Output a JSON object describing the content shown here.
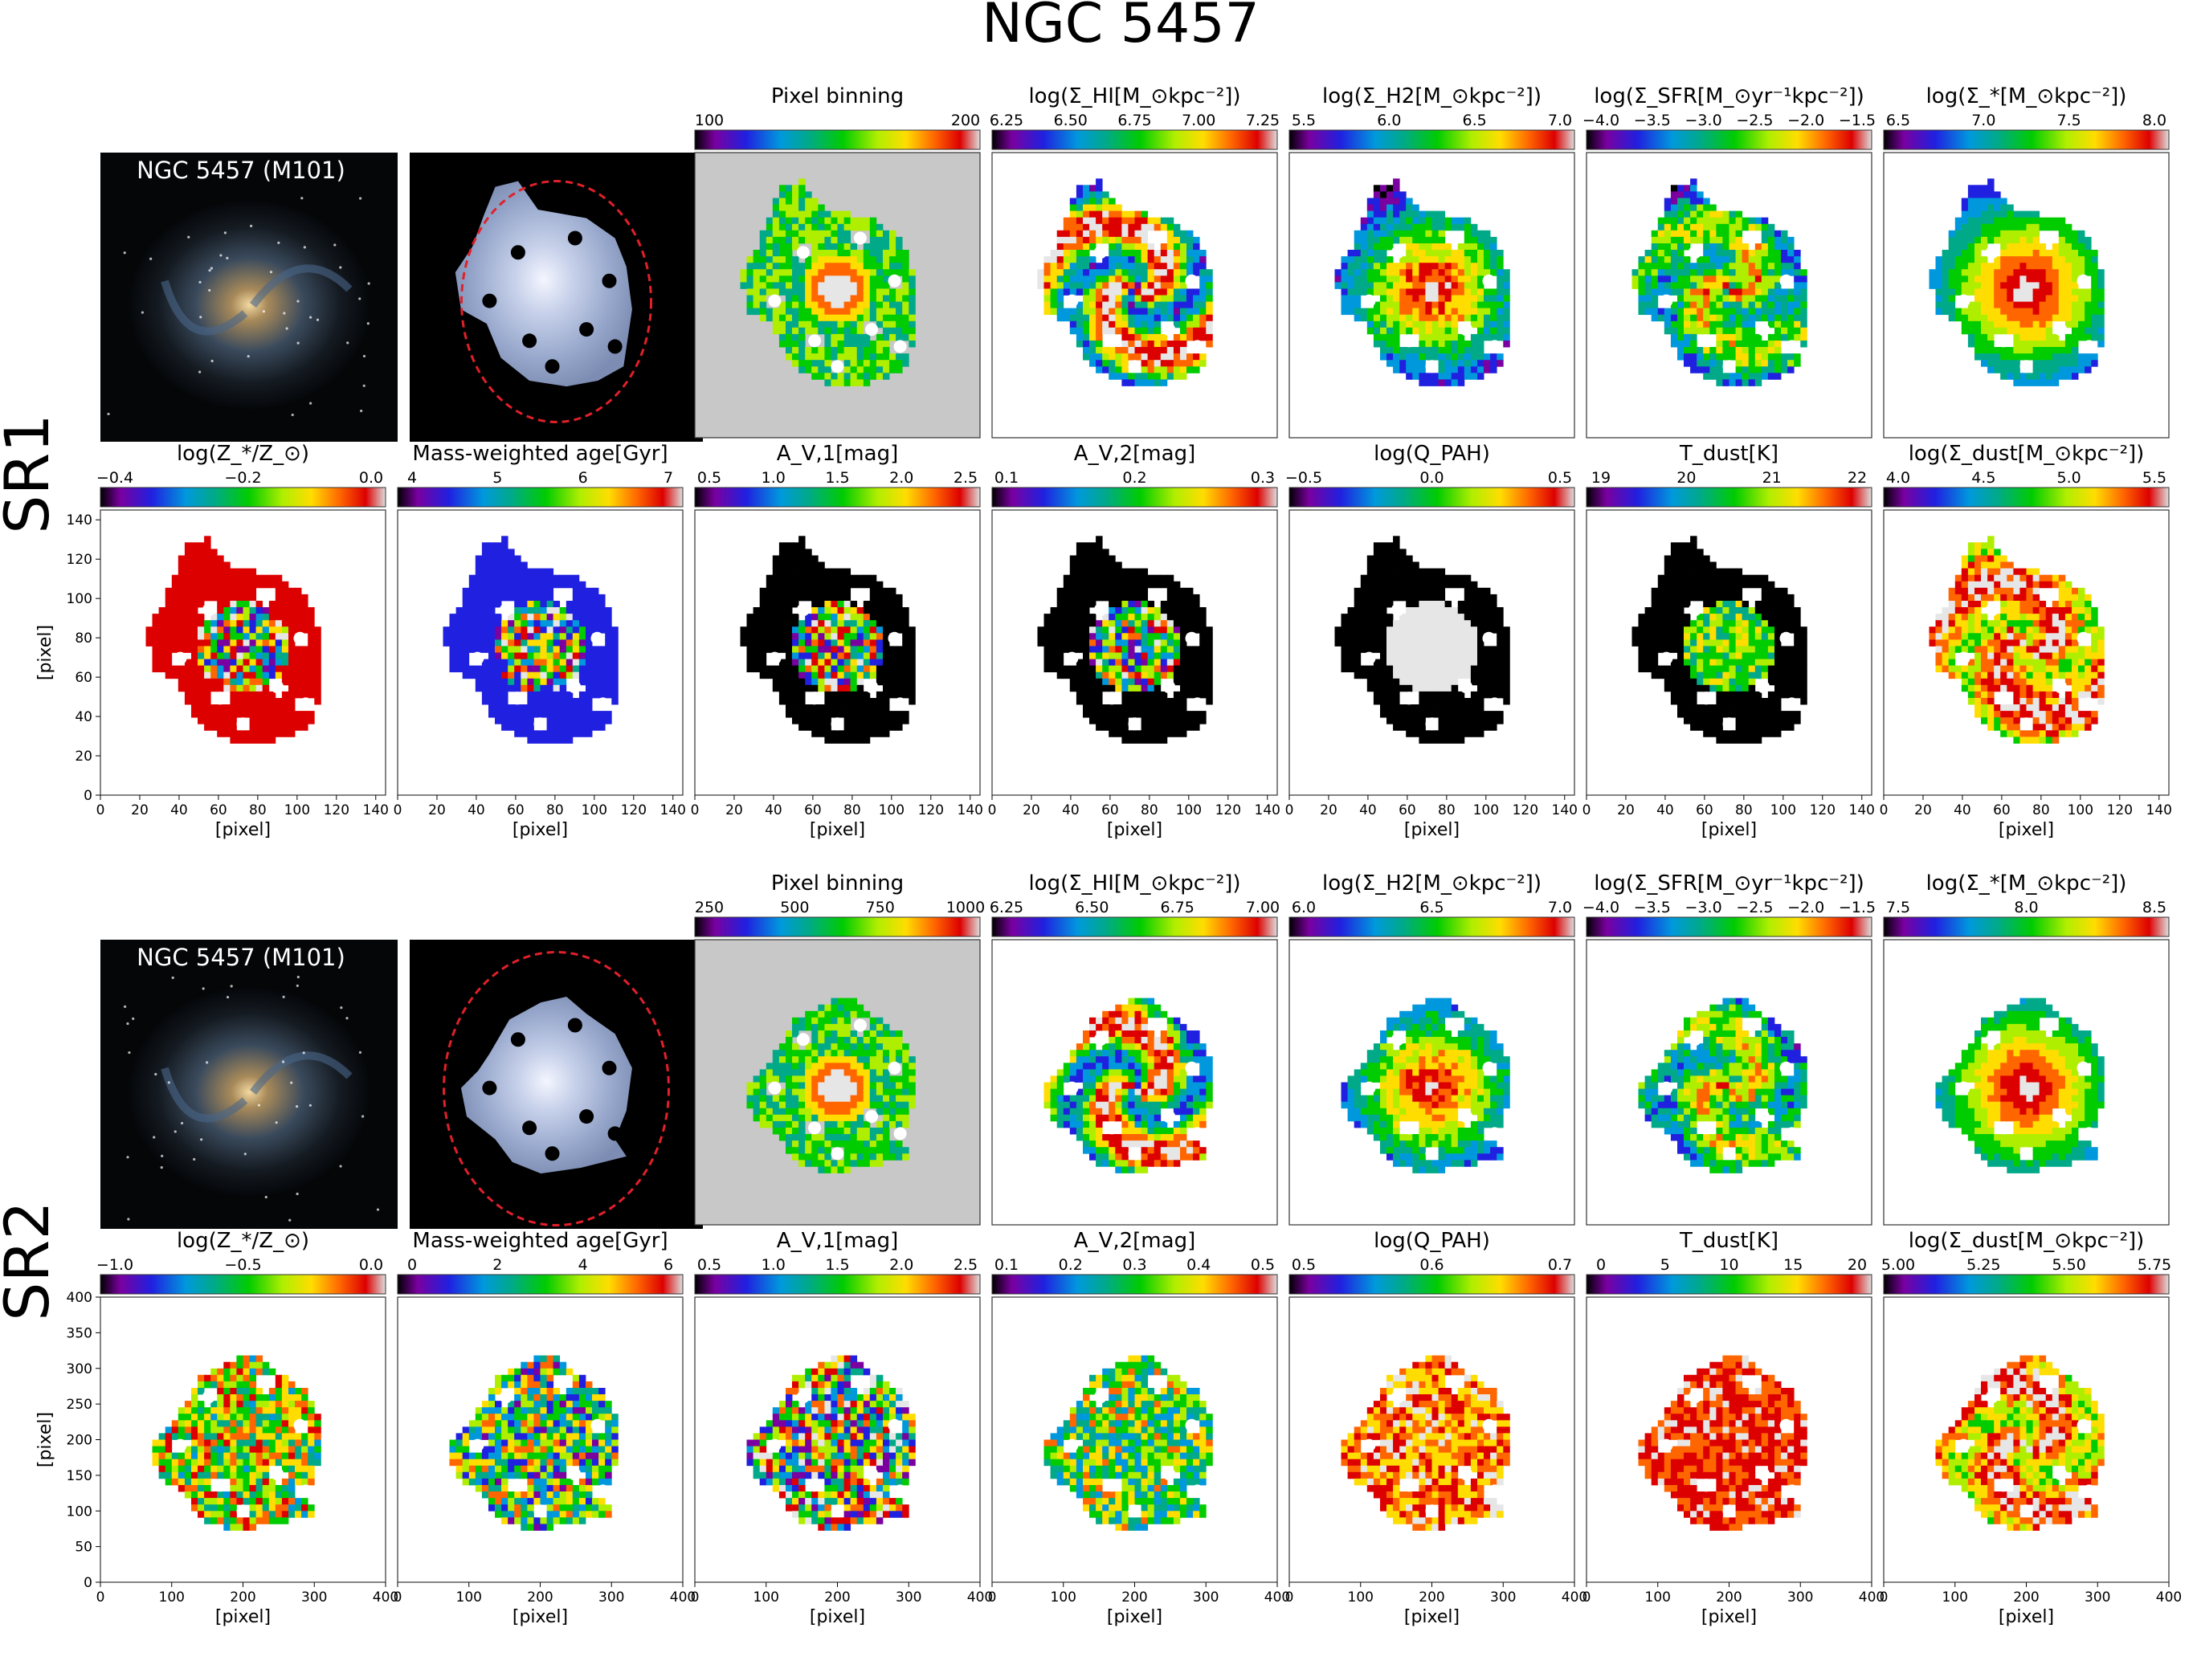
{
  "figure": {
    "title": "NGC 5457",
    "colors": {
      "background": "#ffffff",
      "nodata_dark": "#000000",
      "binning_bg": "#c8c8c8",
      "aperture": "#e0202a"
    },
    "colormap": "nipy_spectral-like (purple-blue-green-yellow-red-white)",
    "rows": [
      {
        "label": "SR1",
        "image_label": "NGC 5457 (M101)",
        "x_axis_label": "[pixel]",
        "y_axis_label": "[pixel]",
        "pixel_axis": {
          "range": [
            0,
            145
          ],
          "ticks": [
            "0",
            "20",
            "40",
            "60",
            "80",
            "100",
            "120",
            "140"
          ]
        },
        "top": [
          {
            "kind": "rgb"
          },
          {
            "kind": "mask"
          },
          {
            "kind": "map",
            "pattern": "binning",
            "title": "Pixel binning",
            "ticks": [
              "100",
              "200"
            ],
            "range": [
              20,
              240
            ]
          },
          {
            "kind": "map",
            "pattern": "hi",
            "title": "log(Σ_HI[M_⊙kpc⁻²])",
            "ticks": [
              "6.25",
              "6.50",
              "6.75",
              "7.00",
              "7.25"
            ]
          },
          {
            "kind": "map",
            "pattern": "h2",
            "title": "log(Σ_H2[M_⊙kpc⁻²])",
            "ticks": [
              "5.5",
              "6.0",
              "6.5",
              "7.0"
            ]
          },
          {
            "kind": "map",
            "pattern": "sfr",
            "title": "log(Σ_SFR[M_⊙yr⁻¹kpc⁻²])",
            "ticks": [
              "−4.0",
              "−3.5",
              "−3.0",
              "−2.5",
              "−2.0",
              "−1.5"
            ]
          },
          {
            "kind": "map",
            "pattern": "mstar",
            "title": "log(Σ_*[M_⊙kpc⁻²])",
            "ticks": [
              "6.5",
              "7.0",
              "7.5",
              "8.0"
            ]
          }
        ],
        "bottom": [
          {
            "pattern": "metal",
            "title": "log(Z_*/Z_⊙)",
            "ticks": [
              "−0.4",
              "−0.2",
              "0.0"
            ]
          },
          {
            "pattern": "age",
            "title": "Mass-weighted age[Gyr]",
            "ticks": [
              "4",
              "5",
              "6",
              "7"
            ]
          },
          {
            "pattern": "av1",
            "title": "A_V,1[mag]",
            "ticks": [
              "0.5",
              "1.0",
              "1.5",
              "2.0",
              "2.5"
            ]
          },
          {
            "pattern": "av2",
            "title": "A_V,2[mag]",
            "ticks": [
              "0.1",
              "0.2",
              "0.3"
            ]
          },
          {
            "pattern": "qpah",
            "title": "log(Q_PAH)",
            "ticks": [
              "−0.5",
              "0.0",
              "0.5"
            ]
          },
          {
            "pattern": "tdust",
            "title": "T_dust[K]",
            "ticks": [
              "19",
              "20",
              "21",
              "22"
            ]
          },
          {
            "pattern": "mdust",
            "title": "log(Σ_dust[M_⊙kpc⁻²])",
            "ticks": [
              "4.0",
              "4.5",
              "5.0",
              "5.5"
            ]
          }
        ]
      },
      {
        "label": "SR2",
        "image_label": "NGC 5457 (M101)",
        "x_axis_label": "[pixel]",
        "y_axis_label": "[pixel]",
        "pixel_axis": {
          "range": [
            0,
            400
          ],
          "ticks": [
            "0",
            "50",
            "100",
            "150",
            "200",
            "250",
            "300",
            "350",
            "400"
          ],
          "x_ticks": [
            "0",
            "100",
            "200",
            "300",
            "400"
          ]
        },
        "top": [
          {
            "kind": "rgb"
          },
          {
            "kind": "mask"
          },
          {
            "kind": "map",
            "pattern": "binning",
            "title": "Pixel binning",
            "ticks": [
              "250",
              "500",
              "750",
              "1000"
            ]
          },
          {
            "kind": "map",
            "pattern": "hi",
            "title": "log(Σ_HI[M_⊙kpc⁻²])",
            "ticks": [
              "6.25",
              "6.50",
              "6.75",
              "7.00"
            ]
          },
          {
            "kind": "map",
            "pattern": "h2",
            "title": "log(Σ_H2[M_⊙kpc⁻²])",
            "ticks": [
              "6.0",
              "6.5",
              "7.0"
            ]
          },
          {
            "kind": "map",
            "pattern": "sfr",
            "title": "log(Σ_SFR[M_⊙yr⁻¹kpc⁻²])",
            "ticks": [
              "−4.0",
              "−3.5",
              "−3.0",
              "−2.5",
              "−2.0",
              "−1.5"
            ]
          },
          {
            "kind": "map",
            "pattern": "mstar",
            "title": "log(Σ_*[M_⊙kpc⁻²])",
            "ticks": [
              "7.5",
              "8.0",
              "8.5"
            ]
          }
        ],
        "bottom": [
          {
            "pattern": "metal",
            "title": "log(Z_*/Z_⊙)",
            "ticks": [
              "−1.0",
              "−0.5",
              "0.0"
            ]
          },
          {
            "pattern": "age",
            "title": "Mass-weighted age[Gyr]",
            "ticks": [
              "0",
              "2",
              "4",
              "6"
            ]
          },
          {
            "pattern": "av1",
            "title": "A_V,1[mag]",
            "ticks": [
              "0.5",
              "1.0",
              "1.5",
              "2.0",
              "2.5"
            ]
          },
          {
            "pattern": "av2",
            "title": "A_V,2[mag]",
            "ticks": [
              "0.1",
              "0.2",
              "0.3",
              "0.4",
              "0.5"
            ]
          },
          {
            "pattern": "qpah",
            "title": "log(Q_PAH)",
            "ticks": [
              "0.5",
              "0.6",
              "0.7"
            ]
          },
          {
            "pattern": "tdust",
            "title": "T_dust[K]",
            "ticks": [
              "0",
              "5",
              "10",
              "15",
              "20"
            ]
          },
          {
            "pattern": "mdust",
            "title": "log(Σ_dust[M_⊙kpc⁻²])",
            "ticks": [
              "5.00",
              "5.25",
              "5.50",
              "5.75"
            ]
          }
        ]
      }
    ]
  }
}
